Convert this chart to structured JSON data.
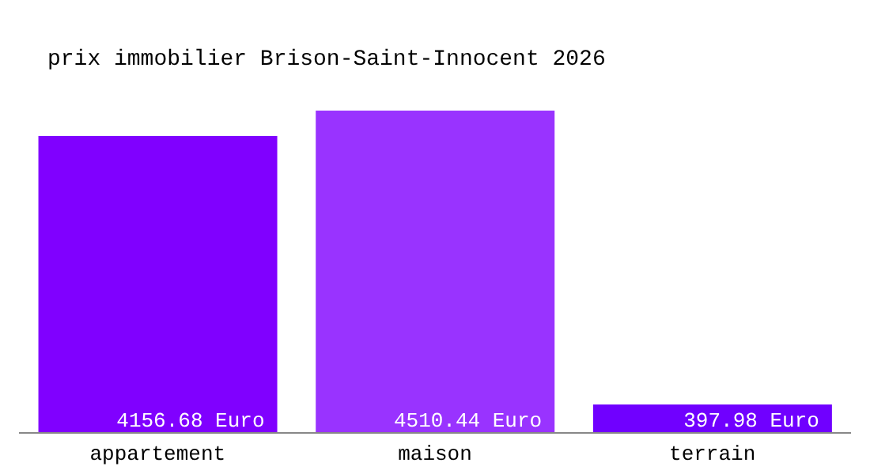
{
  "chart_data": {
    "type": "bar",
    "title": "prix immobilier Brison-Saint-Innocent 2026",
    "categories": [
      "appartement",
      "maison",
      "terrain"
    ],
    "values": [
      4156.68,
      4510.44,
      397.98
    ],
    "value_labels": [
      "4156.68 Euro",
      "4510.44 Euro",
      "397.98 Euro"
    ],
    "colors": [
      "#8000ff",
      "#9933ff",
      "#7000ff"
    ],
    "grid": false,
    "legend": false
  }
}
